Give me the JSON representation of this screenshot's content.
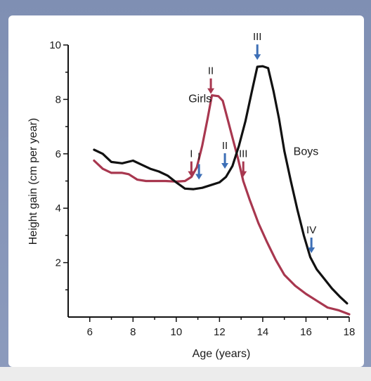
{
  "chart_data": {
    "type": "line",
    "xlabel": "Age (years)",
    "ylabel": "Height gain (cm per year)",
    "xlim": [
      5,
      18
    ],
    "ylim": [
      0,
      10
    ],
    "x_ticks": [
      6,
      8,
      10,
      12,
      14,
      16,
      18
    ],
    "y_ticks": [
      2,
      4,
      6,
      8,
      10
    ],
    "grid": false,
    "colors": {
      "Girls": "#a8374f",
      "Boys": "#111111",
      "arrow_boys": "#3d6fb6",
      "arrow_girls": "#a8374f"
    },
    "series": [
      {
        "name": "Girls",
        "points": [
          [
            6.2,
            5.75
          ],
          [
            6.6,
            5.45
          ],
          [
            7.0,
            5.3
          ],
          [
            7.5,
            5.3
          ],
          [
            7.8,
            5.25
          ],
          [
            8.2,
            5.05
          ],
          [
            8.6,
            5.0
          ],
          [
            9.0,
            5.0
          ],
          [
            9.5,
            5.0
          ],
          [
            10.0,
            4.98
          ],
          [
            10.4,
            5.0
          ],
          [
            10.7,
            5.15
          ],
          [
            10.95,
            5.5
          ],
          [
            11.2,
            6.3
          ],
          [
            11.45,
            7.3
          ],
          [
            11.65,
            8.15
          ],
          [
            11.95,
            8.12
          ],
          [
            12.15,
            7.95
          ],
          [
            12.4,
            7.2
          ],
          [
            12.6,
            6.6
          ],
          [
            12.85,
            5.85
          ],
          [
            13.1,
            5.0
          ],
          [
            13.4,
            4.3
          ],
          [
            13.8,
            3.45
          ],
          [
            14.2,
            2.75
          ],
          [
            14.6,
            2.1
          ],
          [
            15.0,
            1.55
          ],
          [
            15.5,
            1.15
          ],
          [
            16.0,
            0.85
          ],
          [
            16.5,
            0.6
          ],
          [
            17.0,
            0.35
          ],
          [
            17.5,
            0.25
          ],
          [
            18.0,
            0.1
          ]
        ]
      },
      {
        "name": "Boys",
        "points": [
          [
            6.2,
            6.15
          ],
          [
            6.6,
            6.0
          ],
          [
            7.0,
            5.7
          ],
          [
            7.5,
            5.65
          ],
          [
            8.0,
            5.75
          ],
          [
            8.4,
            5.6
          ],
          [
            8.8,
            5.45
          ],
          [
            9.2,
            5.35
          ],
          [
            9.6,
            5.2
          ],
          [
            10.0,
            4.95
          ],
          [
            10.4,
            4.72
          ],
          [
            10.8,
            4.7
          ],
          [
            11.2,
            4.75
          ],
          [
            11.6,
            4.85
          ],
          [
            12.0,
            4.95
          ],
          [
            12.3,
            5.15
          ],
          [
            12.6,
            5.55
          ],
          [
            12.9,
            6.3
          ],
          [
            13.2,
            7.2
          ],
          [
            13.5,
            8.3
          ],
          [
            13.75,
            9.2
          ],
          [
            14.0,
            9.22
          ],
          [
            14.25,
            9.15
          ],
          [
            14.5,
            8.3
          ],
          [
            14.75,
            7.3
          ],
          [
            15.0,
            6.1
          ],
          [
            15.3,
            5.0
          ],
          [
            15.6,
            3.95
          ],
          [
            15.9,
            3.0
          ],
          [
            16.2,
            2.2
          ],
          [
            16.5,
            1.75
          ],
          [
            16.8,
            1.45
          ],
          [
            17.2,
            1.05
          ],
          [
            17.6,
            0.72
          ],
          [
            17.9,
            0.5
          ]
        ]
      }
    ],
    "annotations": [
      {
        "label": "Girls",
        "x": 11.1,
        "y": 7.9,
        "type": "series-label"
      },
      {
        "label": "Boys",
        "x": 16.0,
        "y": 5.95,
        "type": "series-label"
      },
      {
        "label": "I",
        "x": 10.7,
        "y": 5.1,
        "series": "Girls",
        "type": "arrow"
      },
      {
        "label": "II",
        "x": 11.6,
        "y": 8.15,
        "series": "Girls",
        "type": "arrow"
      },
      {
        "label": "III",
        "x": 13.1,
        "y": 5.1,
        "series": "Girls",
        "type": "arrow"
      },
      {
        "label": "I",
        "x": 11.05,
        "y": 5.0,
        "series": "Boys",
        "type": "arrow"
      },
      {
        "label": "II",
        "x": 12.25,
        "y": 5.4,
        "series": "Boys",
        "type": "arrow"
      },
      {
        "label": "III",
        "x": 13.75,
        "y": 9.4,
        "series": "Boys",
        "type": "arrow"
      },
      {
        "label": "IV",
        "x": 16.25,
        "y": 2.3,
        "series": "Boys",
        "type": "arrow"
      }
    ]
  }
}
